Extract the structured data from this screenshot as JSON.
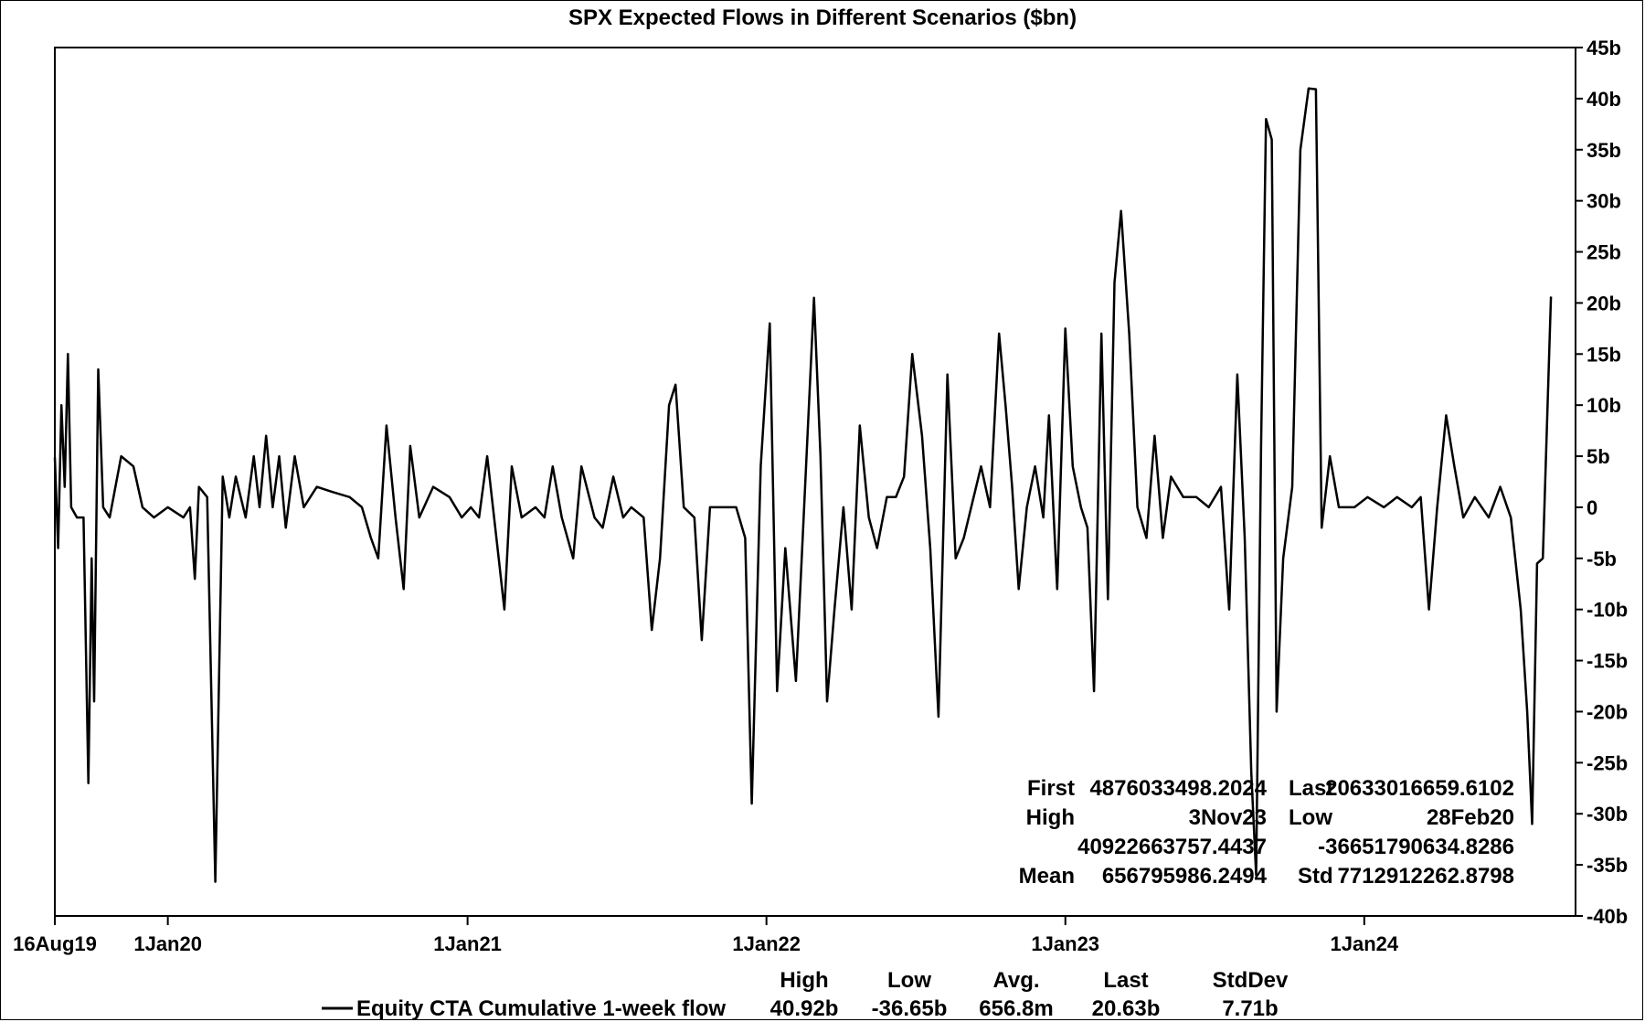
{
  "chart_data": {
    "type": "line",
    "title": "SPX Expected Flows in Different Scenarios ($bn)",
    "xlabel": "",
    "ylabel": "",
    "x_ticks": [
      "16Aug19",
      "1Jan20",
      "1Jan21",
      "1Jan22",
      "1Jan23",
      "1Jan24"
    ],
    "y_ticks": [
      "45b",
      "40b",
      "35b",
      "30b",
      "25b",
      "20b",
      "15b",
      "10b",
      "5b",
      "0",
      "-5b",
      "-10b",
      "-15b",
      "-20b",
      "-25b",
      "-30b",
      "-35b",
      "-40b"
    ],
    "ylim": [
      -40,
      45
    ],
    "xlim": [
      "2019-08-16",
      "2024-09-15"
    ],
    "y_axis_side": "right",
    "grid": false,
    "series": [
      {
        "name": "Equity CTA Cumulative 1-week flow",
        "color": "#000000",
        "points": [
          [
            "2019-08-16",
            4.9
          ],
          [
            "2019-08-20",
            -4
          ],
          [
            "2019-08-24",
            10
          ],
          [
            "2019-08-28",
            2
          ],
          [
            "2019-09-01",
            15
          ],
          [
            "2019-09-05",
            0
          ],
          [
            "2019-09-12",
            -1
          ],
          [
            "2019-09-20",
            -1
          ],
          [
            "2019-09-26",
            -27
          ],
          [
            "2019-09-30",
            -5
          ],
          [
            "2019-10-03",
            -19
          ],
          [
            "2019-10-08",
            13.5
          ],
          [
            "2019-10-14",
            0
          ],
          [
            "2019-10-22",
            -1
          ],
          [
            "2019-11-05",
            5
          ],
          [
            "2019-11-20",
            4
          ],
          [
            "2019-12-01",
            0
          ],
          [
            "2019-12-15",
            -1
          ],
          [
            "2020-01-01",
            0
          ],
          [
            "2020-01-20",
            -1
          ],
          [
            "2020-01-28",
            0
          ],
          [
            "2020-02-03",
            -7
          ],
          [
            "2020-02-08",
            2
          ],
          [
            "2020-02-18",
            1
          ],
          [
            "2020-02-28",
            -36.65
          ],
          [
            "2020-03-08",
            3
          ],
          [
            "2020-03-16",
            -1
          ],
          [
            "2020-03-24",
            3
          ],
          [
            "2020-04-05",
            -1
          ],
          [
            "2020-04-15",
            5
          ],
          [
            "2020-04-22",
            0
          ],
          [
            "2020-04-30",
            7
          ],
          [
            "2020-05-08",
            0
          ],
          [
            "2020-05-16",
            5
          ],
          [
            "2020-05-24",
            -2
          ],
          [
            "2020-06-04",
            5
          ],
          [
            "2020-06-15",
            0
          ],
          [
            "2020-07-01",
            2
          ],
          [
            "2020-07-20",
            1.5
          ],
          [
            "2020-08-10",
            1
          ],
          [
            "2020-08-25",
            0
          ],
          [
            "2020-09-05",
            -3
          ],
          [
            "2020-09-14",
            -5
          ],
          [
            "2020-09-24",
            8
          ],
          [
            "2020-10-05",
            -1
          ],
          [
            "2020-10-15",
            -8
          ],
          [
            "2020-10-23",
            6
          ],
          [
            "2020-11-03",
            -1
          ],
          [
            "2020-11-20",
            2
          ],
          [
            "2020-12-10",
            1
          ],
          [
            "2020-12-25",
            -1
          ],
          [
            "2021-01-05",
            0
          ],
          [
            "2021-01-15",
            -1
          ],
          [
            "2021-01-25",
            5
          ],
          [
            "2021-02-08",
            -5
          ],
          [
            "2021-02-15",
            -10
          ],
          [
            "2021-02-24",
            4
          ],
          [
            "2021-03-08",
            -1
          ],
          [
            "2021-03-25",
            0
          ],
          [
            "2021-04-05",
            -1
          ],
          [
            "2021-04-15",
            4
          ],
          [
            "2021-04-26",
            -1
          ],
          [
            "2021-05-10",
            -5
          ],
          [
            "2021-05-20",
            4
          ],
          [
            "2021-06-05",
            -1
          ],
          [
            "2021-06-15",
            -2
          ],
          [
            "2021-06-28",
            3
          ],
          [
            "2021-07-10",
            -1
          ],
          [
            "2021-07-20",
            0
          ],
          [
            "2021-08-04",
            -1
          ],
          [
            "2021-08-14",
            -12
          ],
          [
            "2021-08-24",
            -5
          ],
          [
            "2021-09-04",
            10
          ],
          [
            "2021-09-12",
            12
          ],
          [
            "2021-09-22",
            0
          ],
          [
            "2021-10-05",
            -1
          ],
          [
            "2021-10-14",
            -13
          ],
          [
            "2021-10-24",
            0
          ],
          [
            "2021-11-10",
            0
          ],
          [
            "2021-11-25",
            0
          ],
          [
            "2021-12-06",
            -3
          ],
          [
            "2021-12-14",
            -29
          ],
          [
            "2021-12-25",
            4
          ],
          [
            "2022-01-05",
            18
          ],
          [
            "2022-01-14",
            -18
          ],
          [
            "2022-01-24",
            -4
          ],
          [
            "2022-02-06",
            -17
          ],
          [
            "2022-02-16",
            0
          ],
          [
            "2022-02-28",
            20.5
          ],
          [
            "2022-03-08",
            5
          ],
          [
            "2022-03-16",
            -19
          ],
          [
            "2022-03-25",
            -10
          ],
          [
            "2022-04-05",
            0
          ],
          [
            "2022-04-15",
            -10
          ],
          [
            "2022-04-25",
            8
          ],
          [
            "2022-05-06",
            -1
          ],
          [
            "2022-05-16",
            -4
          ],
          [
            "2022-05-28",
            1
          ],
          [
            "2022-06-08",
            1
          ],
          [
            "2022-06-18",
            3
          ],
          [
            "2022-06-28",
            15
          ],
          [
            "2022-07-10",
            7
          ],
          [
            "2022-07-20",
            -4
          ],
          [
            "2022-07-30",
            -20.5
          ],
          [
            "2022-08-10",
            13
          ],
          [
            "2022-08-20",
            -5
          ],
          [
            "2022-08-30",
            -3
          ],
          [
            "2022-09-08",
            0
          ],
          [
            "2022-09-20",
            4
          ],
          [
            "2022-10-01",
            0
          ],
          [
            "2022-10-12",
            17
          ],
          [
            "2022-10-20",
            10
          ],
          [
            "2022-10-28",
            2
          ],
          [
            "2022-11-05",
            -8
          ],
          [
            "2022-11-15",
            0
          ],
          [
            "2022-11-25",
            4
          ],
          [
            "2022-12-05",
            -1
          ],
          [
            "2022-12-12",
            9
          ],
          [
            "2022-12-22",
            -8
          ],
          [
            "2023-01-01",
            17.5
          ],
          [
            "2023-01-10",
            4
          ],
          [
            "2023-01-20",
            0
          ],
          [
            "2023-01-28",
            -2
          ],
          [
            "2023-02-05",
            -18
          ],
          [
            "2023-02-14",
            17
          ],
          [
            "2023-02-22",
            -9
          ],
          [
            "2023-03-02",
            22
          ],
          [
            "2023-03-10",
            29
          ],
          [
            "2023-03-20",
            17
          ],
          [
            "2023-03-30",
            0
          ],
          [
            "2023-04-10",
            -3
          ],
          [
            "2023-04-20",
            7
          ],
          [
            "2023-04-30",
            -3
          ],
          [
            "2023-05-10",
            3
          ],
          [
            "2023-05-25",
            1
          ],
          [
            "2023-06-10",
            1
          ],
          [
            "2023-06-25",
            0
          ],
          [
            "2023-07-10",
            2
          ],
          [
            "2023-07-20",
            -10
          ],
          [
            "2023-07-30",
            13
          ],
          [
            "2023-08-08",
            -3
          ],
          [
            "2023-08-16",
            -26
          ],
          [
            "2023-08-22",
            -36
          ],
          [
            "2023-08-28",
            6
          ],
          [
            "2023-09-03",
            38
          ],
          [
            "2023-09-10",
            36
          ],
          [
            "2023-09-16",
            -20
          ],
          [
            "2023-09-24",
            -5
          ],
          [
            "2023-10-05",
            2
          ],
          [
            "2023-10-15",
            35
          ],
          [
            "2023-10-25",
            41
          ],
          [
            "2023-11-03",
            40.92
          ],
          [
            "2023-11-10",
            -2
          ],
          [
            "2023-11-20",
            5
          ],
          [
            "2023-12-01",
            0
          ],
          [
            "2023-12-20",
            0
          ],
          [
            "2024-01-05",
            1
          ],
          [
            "2024-01-25",
            0
          ],
          [
            "2024-02-10",
            1
          ],
          [
            "2024-02-28",
            0
          ],
          [
            "2024-03-10",
            1
          ],
          [
            "2024-03-20",
            -10
          ],
          [
            "2024-03-30",
            0
          ],
          [
            "2024-04-10",
            9
          ],
          [
            "2024-04-20",
            4
          ],
          [
            "2024-05-01",
            -1
          ],
          [
            "2024-05-15",
            1
          ],
          [
            "2024-06-01",
            -1
          ],
          [
            "2024-06-15",
            2
          ],
          [
            "2024-06-28",
            -1
          ],
          [
            "2024-07-10",
            -10
          ],
          [
            "2024-07-18",
            -20
          ],
          [
            "2024-07-24",
            -31
          ],
          [
            "2024-07-30",
            -5.5
          ],
          [
            "2024-08-06",
            -5
          ],
          [
            "2024-08-16",
            20.63
          ]
        ]
      }
    ],
    "stats_box": {
      "placement": "bottom-right",
      "first_label": "First",
      "first_value": "4876033498.2024",
      "last_label": "Last",
      "last_value": "20633016659.6102",
      "high_label": "High",
      "high_date": "3Nov23",
      "high_value": "40922663757.4437",
      "low_label": "Low",
      "low_date": "28Feb20",
      "low_value": "-36651790634.8286",
      "mean_label": "Mean",
      "mean_value": "656795986.2494",
      "std_label": "Std",
      "std_value": "7712912262.8798"
    },
    "legend": {
      "placement": "bottom",
      "series_name": "Equity CTA Cumulative 1-week flow",
      "headers": [
        "High",
        "Low",
        "Avg.",
        "Last",
        "StdDev"
      ],
      "values": [
        "40.92b",
        "-36.65b",
        "656.8m",
        "20.63b",
        "7.71b"
      ]
    }
  }
}
